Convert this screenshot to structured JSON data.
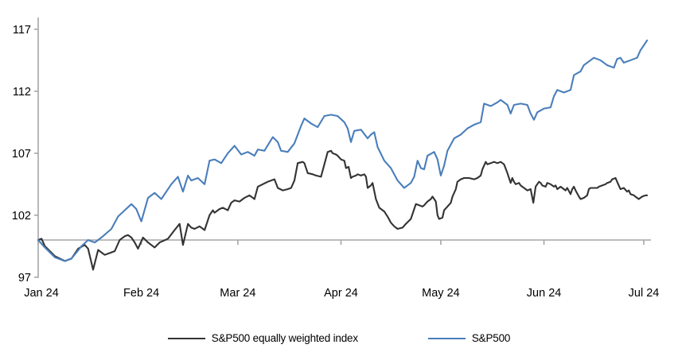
{
  "chart_data": {
    "type": "line",
    "title": "",
    "grid": "off",
    "legend_position": "bottom",
    "axis_color": "#a6a6a6",
    "text_color": "#000000",
    "x_axis": {
      "labels": [
        "Jan 24",
        "Feb 24",
        "Mar 24",
        "Apr 24",
        "May 24",
        "Jun 24",
        "Jul 24"
      ],
      "tick_days": [
        0,
        31,
        60,
        91,
        121,
        152,
        182
      ],
      "range_days": [
        0,
        184
      ]
    },
    "y_axis": {
      "ticks": [
        97,
        102,
        107,
        112,
        117
      ],
      "min": 97,
      "max": 117,
      "crossing_baseline": 100
    },
    "series": [
      {
        "name": "S&P500 equally weighted index",
        "color": "#333333",
        "points": [
          [
            0,
            100
          ],
          [
            1,
            100.1
          ],
          [
            2,
            99.5
          ],
          [
            5,
            98.7
          ],
          [
            8,
            98.3
          ],
          [
            10,
            98.5
          ],
          [
            12,
            99.3
          ],
          [
            14,
            99.6
          ],
          [
            15,
            99.3
          ],
          [
            16.5,
            97.6
          ],
          [
            18,
            99.2
          ],
          [
            20,
            98.8
          ],
          [
            22,
            99.0
          ],
          [
            23,
            99.1
          ],
          [
            24.5,
            100.0
          ],
          [
            26,
            100.3
          ],
          [
            27,
            100.4
          ],
          [
            28,
            100.2
          ],
          [
            29,
            99.8
          ],
          [
            30,
            99.3
          ],
          [
            31.5,
            100.2
          ],
          [
            33,
            99.8
          ],
          [
            35,
            99.4
          ],
          [
            36.5,
            99.8
          ],
          [
            39,
            100.1
          ],
          [
            41,
            100.8
          ],
          [
            42.5,
            101.3
          ],
          [
            43.5,
            99.6
          ],
          [
            45,
            101.3
          ],
          [
            46,
            101.0
          ],
          [
            47,
            100.9
          ],
          [
            48.5,
            101.1
          ],
          [
            50,
            100.8
          ],
          [
            51.5,
            102.0
          ],
          [
            52.5,
            102.4
          ],
          [
            53,
            102.2
          ],
          [
            54.5,
            102.5
          ],
          [
            55.5,
            102.6
          ],
          [
            57,
            102.4
          ],
          [
            58,
            103.0
          ],
          [
            59,
            103.2
          ],
          [
            60.5,
            103.1
          ],
          [
            62,
            103.4
          ],
          [
            63.5,
            103.6
          ],
          [
            65,
            103.3
          ],
          [
            66,
            104.3
          ],
          [
            67.5,
            104.5
          ],
          [
            69,
            104.7
          ],
          [
            71,
            104.9
          ],
          [
            72,
            104.2
          ],
          [
            73.5,
            104.0
          ],
          [
            75,
            104.1
          ],
          [
            76,
            104.2
          ],
          [
            77,
            104.8
          ],
          [
            78,
            106.2
          ],
          [
            79.5,
            106.3
          ],
          [
            80,
            106.2
          ],
          [
            81,
            105.4
          ],
          [
            82.5,
            105.3
          ],
          [
            83.5,
            105.2
          ],
          [
            85,
            105.1
          ],
          [
            86,
            106.1
          ],
          [
            87,
            107.1
          ],
          [
            88,
            107.2
          ],
          [
            88.5,
            107.0
          ],
          [
            89.5,
            106.9
          ],
          [
            90,
            106.8
          ],
          [
            91,
            106.5
          ],
          [
            92,
            106.4
          ],
          [
            92.5,
            105.8
          ],
          [
            93.3,
            105.9
          ],
          [
            94,
            105.0
          ],
          [
            94.5,
            105.1
          ],
          [
            95.5,
            105.2
          ],
          [
            96,
            105.3
          ],
          [
            97,
            105.2
          ],
          [
            98,
            105.3
          ],
          [
            98.5,
            105.1
          ],
          [
            99,
            104.2
          ],
          [
            100,
            104.4
          ],
          [
            100.5,
            104.6
          ],
          [
            101.5,
            103.3
          ],
          [
            102.5,
            102.6
          ],
          [
            104,
            102.3
          ],
          [
            105,
            101.9
          ],
          [
            106,
            101.4
          ],
          [
            107,
            101.1
          ],
          [
            108,
            100.9
          ],
          [
            109.5,
            101.0
          ],
          [
            110.5,
            101.3
          ],
          [
            112,
            101.7
          ],
          [
            113,
            102.5
          ],
          [
            113.5,
            102.9
          ],
          [
            114.5,
            102.8
          ],
          [
            115.5,
            102.7
          ],
          [
            116,
            102.8
          ],
          [
            117,
            103.1
          ],
          [
            118,
            103.3
          ],
          [
            118.5,
            103.5
          ],
          [
            119.5,
            103.1
          ],
          [
            120,
            102.0
          ],
          [
            120.5,
            101.7
          ],
          [
            121.5,
            101.8
          ],
          [
            122,
            102.4
          ],
          [
            123,
            102.7
          ],
          [
            124,
            103.0
          ],
          [
            124.5,
            103.5
          ],
          [
            125.5,
            104.1
          ],
          [
            126,
            104.7
          ],
          [
            127,
            104.9
          ],
          [
            128,
            105.0
          ],
          [
            129.5,
            105.0
          ],
          [
            131,
            104.9
          ],
          [
            132,
            105.0
          ],
          [
            133,
            105.2
          ],
          [
            133.5,
            105.7
          ],
          [
            134.5,
            106.3
          ],
          [
            135,
            106.1
          ],
          [
            136,
            106.2
          ],
          [
            137,
            106.3
          ],
          [
            138,
            106.2
          ],
          [
            139,
            106.3
          ],
          [
            140,
            106.1
          ],
          [
            141,
            105.4
          ],
          [
            142,
            104.6
          ],
          [
            142.5,
            105.0
          ],
          [
            143,
            104.7
          ],
          [
            143.5,
            104.5
          ],
          [
            144.5,
            104.6
          ],
          [
            145,
            104.4
          ],
          [
            146,
            104.2
          ],
          [
            147,
            104.0
          ],
          [
            148,
            104.1
          ],
          [
            148.8,
            103.0
          ],
          [
            149.5,
            104.3
          ],
          [
            150.5,
            104.7
          ],
          [
            151,
            104.6
          ],
          [
            151.5,
            104.4
          ],
          [
            152.5,
            104.3
          ],
          [
            153,
            104.6
          ],
          [
            154,
            104.5
          ],
          [
            155,
            104.3
          ],
          [
            155.5,
            104.4
          ],
          [
            156,
            104.1
          ],
          [
            157,
            104.3
          ],
          [
            157.5,
            104.2
          ],
          [
            158.5,
            104.0
          ],
          [
            159,
            104.2
          ],
          [
            160,
            103.7
          ],
          [
            160.5,
            104.1
          ],
          [
            161,
            104.3
          ],
          [
            161.5,
            104.0
          ],
          [
            162.5,
            103.5
          ],
          [
            163,
            103.3
          ],
          [
            164,
            103.4
          ],
          [
            165,
            103.6
          ],
          [
            165.5,
            104.1
          ],
          [
            166,
            104.2
          ],
          [
            167,
            104.2
          ],
          [
            168,
            104.2
          ],
          [
            168.5,
            104.3
          ],
          [
            169.5,
            104.4
          ],
          [
            170.5,
            104.5
          ],
          [
            171,
            104.6
          ],
          [
            172,
            104.7
          ],
          [
            172.5,
            104.9
          ],
          [
            173.5,
            105.0
          ],
          [
            174.5,
            104.4
          ],
          [
            175,
            104.1
          ],
          [
            176,
            104.2
          ],
          [
            177,
            103.9
          ],
          [
            177.5,
            104.0
          ],
          [
            178,
            103.7
          ],
          [
            179,
            103.6
          ],
          [
            180,
            103.4
          ],
          [
            180.5,
            103.3
          ],
          [
            181.5,
            103.5
          ],
          [
            182.5,
            103.6
          ],
          [
            183,
            103.6
          ]
        ]
      },
      {
        "name": "S&P500",
        "color": "#4a7ebb",
        "points": [
          [
            0,
            100
          ],
          [
            2,
            99.4
          ],
          [
            5,
            98.6
          ],
          [
            8,
            98.3
          ],
          [
            10,
            98.5
          ],
          [
            13,
            99.5
          ],
          [
            15,
            100.0
          ],
          [
            17,
            99.8
          ],
          [
            19,
            100.2
          ],
          [
            22,
            100.9
          ],
          [
            24,
            101.9
          ],
          [
            26,
            102.4
          ],
          [
            28,
            102.9
          ],
          [
            29.5,
            102.5
          ],
          [
            31,
            101.5
          ],
          [
            33,
            103.4
          ],
          [
            35,
            103.8
          ],
          [
            37,
            103.3
          ],
          [
            40,
            104.5
          ],
          [
            42,
            105.1
          ],
          [
            43.5,
            103.9
          ],
          [
            45,
            105.2
          ],
          [
            46,
            104.8
          ],
          [
            48,
            105.0
          ],
          [
            50,
            104.5
          ],
          [
            51.5,
            106.4
          ],
          [
            53,
            106.5
          ],
          [
            55,
            106.2
          ],
          [
            57,
            107.0
          ],
          [
            59,
            107.6
          ],
          [
            61,
            106.9
          ],
          [
            63,
            107.1
          ],
          [
            65,
            106.8
          ],
          [
            66,
            107.3
          ],
          [
            68,
            107.2
          ],
          [
            70.5,
            108.3
          ],
          [
            72,
            107.9
          ],
          [
            73,
            107.2
          ],
          [
            75,
            107.1
          ],
          [
            77,
            107.8
          ],
          [
            79,
            109.2
          ],
          [
            80,
            109.8
          ],
          [
            82,
            109.4
          ],
          [
            84,
            109.1
          ],
          [
            86,
            110.0
          ],
          [
            88,
            110.1
          ],
          [
            90,
            110.0
          ],
          [
            92,
            109.5
          ],
          [
            93,
            109.0
          ],
          [
            94,
            107.9
          ],
          [
            95,
            108.8
          ],
          [
            97,
            108.9
          ],
          [
            99,
            108.2
          ],
          [
            100,
            108.5
          ],
          [
            101,
            108.7
          ],
          [
            102,
            107.5
          ],
          [
            104,
            106.4
          ],
          [
            106,
            105.8
          ],
          [
            108,
            104.8
          ],
          [
            110,
            104.2
          ],
          [
            112,
            104.6
          ],
          [
            113,
            105.1
          ],
          [
            114,
            106.4
          ],
          [
            115,
            105.8
          ],
          [
            116,
            105.7
          ],
          [
            117,
            106.8
          ],
          [
            119,
            107.1
          ],
          [
            120,
            106.5
          ],
          [
            121,
            105.2
          ],
          [
            122,
            106.0
          ],
          [
            123,
            107.2
          ],
          [
            125,
            108.2
          ],
          [
            127,
            108.5
          ],
          [
            129,
            109.0
          ],
          [
            131,
            109.3
          ],
          [
            133,
            109.5
          ],
          [
            134,
            111.0
          ],
          [
            136,
            110.8
          ],
          [
            138,
            111.1
          ],
          [
            139,
            111.3
          ],
          [
            141,
            110.9
          ],
          [
            142,
            110.2
          ],
          [
            143,
            110.9
          ],
          [
            145,
            111.0
          ],
          [
            147,
            110.9
          ],
          [
            148,
            110.2
          ],
          [
            149,
            109.7
          ],
          [
            150,
            110.3
          ],
          [
            152,
            110.6
          ],
          [
            154,
            110.7
          ],
          [
            155,
            111.6
          ],
          [
            156,
            112.1
          ],
          [
            158,
            111.9
          ],
          [
            160,
            112.1
          ],
          [
            161,
            113.3
          ],
          [
            163,
            113.6
          ],
          [
            164,
            114.1
          ],
          [
            166,
            114.5
          ],
          [
            167,
            114.7
          ],
          [
            169,
            114.5
          ],
          [
            171,
            114.1
          ],
          [
            173,
            113.9
          ],
          [
            174,
            114.6
          ],
          [
            175,
            114.7
          ],
          [
            176,
            114.3
          ],
          [
            178,
            114.5
          ],
          [
            180,
            114.7
          ],
          [
            181,
            115.3
          ],
          [
            182,
            115.7
          ],
          [
            183,
            116.1
          ]
        ]
      }
    ]
  }
}
